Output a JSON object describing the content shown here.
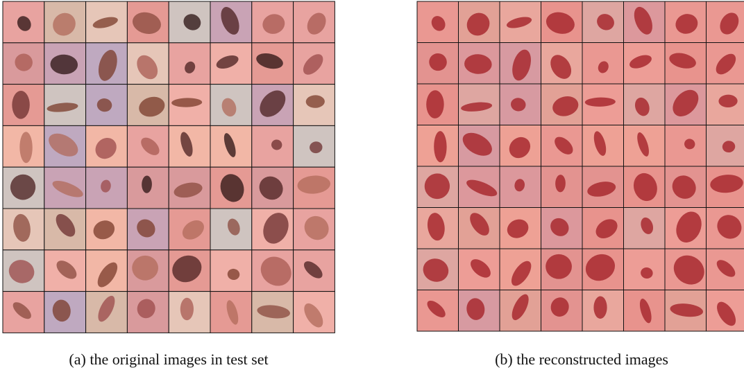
{
  "figure": {
    "panels": [
      {
        "caption": "(a) the original images in test set"
      },
      {
        "caption": "(b) the reconstructed images"
      }
    ]
  }
}
